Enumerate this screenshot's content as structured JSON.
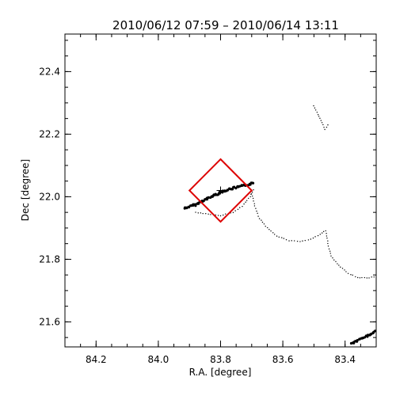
{
  "chart_data": {
    "type": "scatter",
    "title": "2010/06/12 07:59 – 2010/06/14 13:11",
    "xlabel": "R.A. [degree]",
    "ylabel": "Dec [degree]",
    "xlim": [
      84.3,
      83.3
    ],
    "ylim": [
      21.52,
      22.52
    ],
    "x_reversed": true,
    "grid": false,
    "xticks": [
      84.2,
      84.0,
      83.8,
      83.6,
      83.4
    ],
    "xtick_labels": [
      "84.2",
      "84.0",
      "83.8",
      "83.6",
      "83.4"
    ],
    "yticks": [
      21.6,
      21.8,
      22.0,
      22.2,
      22.4
    ],
    "ytick_labels": [
      "21.6",
      "21.8",
      "22.0",
      "22.2",
      "22.4"
    ],
    "marker_color": "#000000",
    "tracks": [
      {
        "description": "dense main arc",
        "points": [
          [
            83.915,
            21.963
          ],
          [
            83.88,
            21.975
          ],
          [
            83.85,
            21.99
          ],
          [
            83.82,
            22.005
          ],
          [
            83.79,
            22.018
          ],
          [
            83.76,
            22.027
          ],
          [
            83.73,
            22.034
          ],
          [
            83.705,
            22.04
          ],
          [
            83.69,
            22.045
          ]
        ],
        "density": "dense"
      },
      {
        "description": "faint lower branch",
        "points": [
          [
            83.88,
            21.95
          ],
          [
            83.84,
            21.945
          ],
          [
            83.8,
            21.94
          ],
          [
            83.76,
            21.95
          ],
          [
            83.73,
            21.97
          ],
          [
            83.705,
            22.0
          ],
          [
            83.69,
            22.03
          ]
        ],
        "density": "sparse"
      },
      {
        "description": "long curved trail",
        "points": [
          [
            83.7,
            22.01
          ],
          [
            83.69,
            21.97
          ],
          [
            83.675,
            21.93
          ],
          [
            83.65,
            21.9
          ],
          [
            83.62,
            21.875
          ],
          [
            83.58,
            21.86
          ],
          [
            83.545,
            21.857
          ],
          [
            83.51,
            21.864
          ],
          [
            83.48,
            21.88
          ],
          [
            83.462,
            21.892
          ]
        ],
        "density": "sparse"
      },
      {
        "description": "descending trail",
        "points": [
          [
            83.462,
            21.892
          ],
          [
            83.455,
            21.85
          ],
          [
            83.445,
            21.81
          ],
          [
            83.42,
            21.78
          ],
          [
            83.39,
            21.755
          ],
          [
            83.36,
            21.742
          ],
          [
            83.33,
            21.74
          ],
          [
            83.3,
            21.745
          ]
        ],
        "density": "sparse"
      },
      {
        "description": "short upper trail",
        "points": [
          [
            83.5,
            22.29
          ],
          [
            83.49,
            22.27
          ],
          [
            83.48,
            22.25
          ],
          [
            83.47,
            22.23
          ],
          [
            83.465,
            22.215
          ],
          [
            83.455,
            22.23
          ],
          [
            83.45,
            22.24
          ]
        ],
        "density": "sparse"
      },
      {
        "description": "lower-right track",
        "points": [
          [
            83.38,
            21.53
          ],
          [
            83.35,
            21.545
          ],
          [
            83.32,
            21.56
          ],
          [
            83.3,
            21.57
          ]
        ],
        "density": "dense"
      }
    ],
    "overlays": [
      {
        "type": "diamond",
        "color": "#dd0000",
        "center": [
          83.8,
          22.02
        ],
        "vertices": [
          [
            83.8,
            22.12
          ],
          [
            83.7,
            22.02
          ],
          [
            83.8,
            21.92
          ],
          [
            83.9,
            22.02
          ]
        ]
      },
      {
        "type": "plus",
        "color": "#000000",
        "center": [
          83.8,
          22.02
        ]
      }
    ]
  }
}
